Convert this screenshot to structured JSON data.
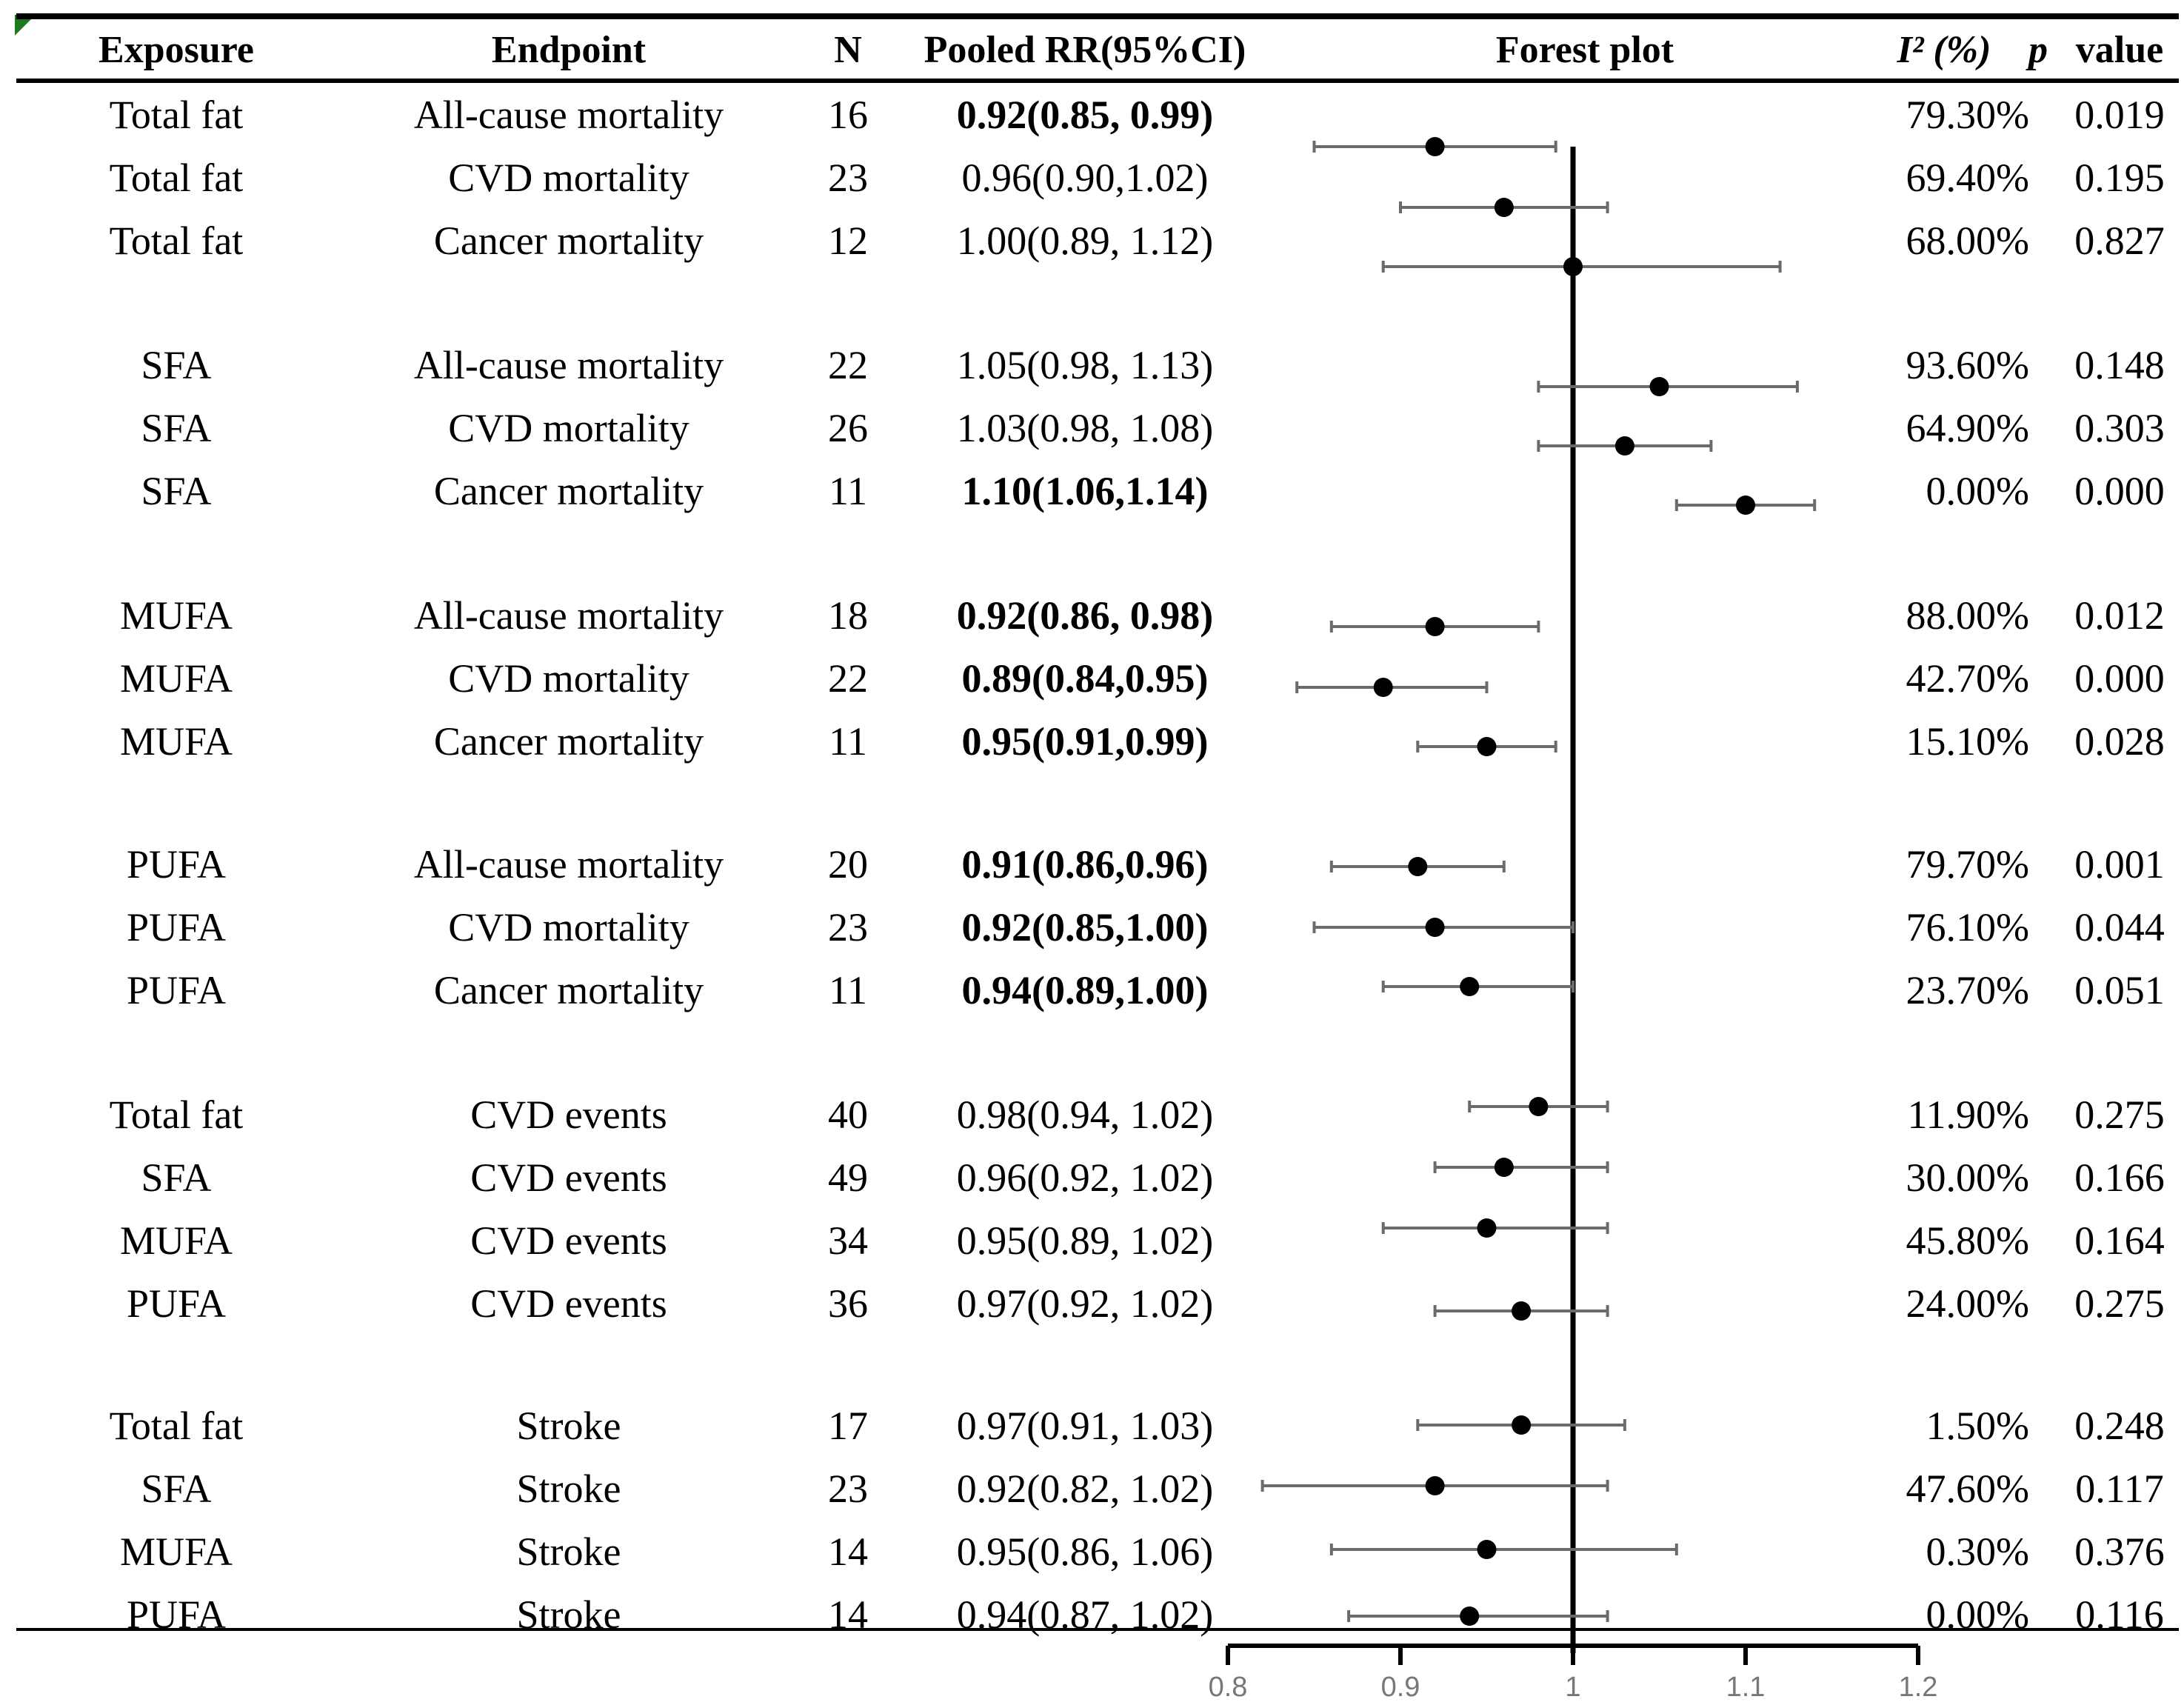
{
  "headers": {
    "exposure": "Exposure",
    "endpoint": "Endpoint",
    "n": "N",
    "pooled": "Pooled RR(95%CI)",
    "forest": "Forest plot",
    "i2": "I² (%)",
    "p": "p",
    "value": "value"
  },
  "rows": [
    {
      "exposure": "Total fat",
      "endpoint": "All-cause mortality",
      "n": "16",
      "rr_text": "0.92(0.85, 0.99)",
      "bold": true,
      "i2": "79.30%",
      "p": "0.019"
    },
    {
      "exposure": "Total fat",
      "endpoint": "CVD mortality",
      "n": "23",
      "rr_text": "0.96(0.90,1.02)",
      "bold": false,
      "i2": "69.40%",
      "p": "0.195"
    },
    {
      "exposure": "Total fat",
      "endpoint": "Cancer mortality",
      "n": "12",
      "rr_text": "1.00(0.89, 1.12)",
      "bold": false,
      "i2": "68.00%",
      "p": "0.827"
    },
    {
      "exposure": "SFA",
      "endpoint": "All-cause mortality",
      "n": "22",
      "rr_text": "1.05(0.98, 1.13)",
      "bold": false,
      "i2": "93.60%",
      "p": "0.148"
    },
    {
      "exposure": "SFA",
      "endpoint": "CVD mortality",
      "n": "26",
      "rr_text": "1.03(0.98, 1.08)",
      "bold": false,
      "i2": "64.90%",
      "p": "0.303"
    },
    {
      "exposure": "SFA",
      "endpoint": "Cancer mortality",
      "n": "11",
      "rr_text": "1.10(1.06,1.14)",
      "bold": true,
      "i2": "0.00%",
      "p": "0.000"
    },
    {
      "exposure": "MUFA",
      "endpoint": "All-cause mortality",
      "n": "18",
      "rr_text": "0.92(0.86, 0.98)",
      "bold": true,
      "i2": "88.00%",
      "p": "0.012"
    },
    {
      "exposure": "MUFA",
      "endpoint": "CVD mortality",
      "n": "22",
      "rr_text": "0.89(0.84,0.95)",
      "bold": true,
      "i2": "42.70%",
      "p": "0.000"
    },
    {
      "exposure": "MUFA",
      "endpoint": "Cancer mortality",
      "n": "11",
      "rr_text": "0.95(0.91,0.99)",
      "bold": true,
      "i2": "15.10%",
      "p": "0.028"
    },
    {
      "exposure": "PUFA",
      "endpoint": "All-cause mortality",
      "n": "20",
      "rr_text": "0.91(0.86,0.96)",
      "bold": true,
      "i2": "79.70%",
      "p": "0.001"
    },
    {
      "exposure": "PUFA",
      "endpoint": "CVD mortality",
      "n": "23",
      "rr_text": "0.92(0.85,1.00)",
      "bold": true,
      "i2": "76.10%",
      "p": "0.044"
    },
    {
      "exposure": "PUFA",
      "endpoint": "Cancer mortality",
      "n": "11",
      "rr_text": "0.94(0.89,1.00)",
      "bold": true,
      "i2": "23.70%",
      "p": "0.051"
    },
    {
      "exposure": "Total fat",
      "endpoint": "CVD events",
      "n": "40",
      "rr_text": "0.98(0.94, 1.02)",
      "bold": false,
      "i2": "11.90%",
      "p": "0.275"
    },
    {
      "exposure": "SFA",
      "endpoint": "CVD events",
      "n": "49",
      "rr_text": "0.96(0.92, 1.02)",
      "bold": false,
      "i2": "30.00%",
      "p": "0.166"
    },
    {
      "exposure": "MUFA",
      "endpoint": "CVD events",
      "n": "34",
      "rr_text": "0.95(0.89, 1.02)",
      "bold": false,
      "i2": "45.80%",
      "p": "0.164"
    },
    {
      "exposure": "PUFA",
      "endpoint": "CVD events",
      "n": "36",
      "rr_text": "0.97(0.92, 1.02)",
      "bold": false,
      "i2": "24.00%",
      "p": "0.275"
    },
    {
      "exposure": "Total fat",
      "endpoint": "Stroke",
      "n": "17",
      "rr_text": "0.97(0.91, 1.03)",
      "bold": false,
      "i2": "1.50%",
      "p": "0.248"
    },
    {
      "exposure": "SFA",
      "endpoint": "Stroke",
      "n": "23",
      "rr_text": "0.92(0.82, 1.02)",
      "bold": false,
      "i2": "47.60%",
      "p": "0.117"
    },
    {
      "exposure": "MUFA",
      "endpoint": "Stroke",
      "n": "14",
      "rr_text": "0.95(0.86, 1.06)",
      "bold": false,
      "i2": "0.30%",
      "p": "0.376"
    },
    {
      "exposure": "PUFA",
      "endpoint": "Stroke",
      "n": "14",
      "rr_text": "0.94(0.87, 1.02)",
      "bold": false,
      "i2": "0.00%",
      "p": "0.116"
    }
  ],
  "chart_data": {
    "type": "forest",
    "title": "Forest plot",
    "xlabel": "",
    "ylabel": "",
    "xlim": [
      0.8,
      1.2
    ],
    "reference_line": 1.0,
    "ticks": [
      0.8,
      0.9,
      1.0,
      1.1,
      1.2
    ],
    "tick_labels": [
      "0.8",
      "0.9",
      "1",
      "1.1",
      "1.2"
    ],
    "points": [
      {
        "label": "Total fat / All-cause mortality",
        "rr": 0.92,
        "lo": 0.85,
        "hi": 0.99
      },
      {
        "label": "Total fat / CVD mortality",
        "rr": 0.96,
        "lo": 0.9,
        "hi": 1.02
      },
      {
        "label": "Total fat / Cancer mortality",
        "rr": 1.0,
        "lo": 0.89,
        "hi": 1.12
      },
      {
        "label": "SFA / All-cause mortality",
        "rr": 1.05,
        "lo": 0.98,
        "hi": 1.13
      },
      {
        "label": "SFA / CVD mortality",
        "rr": 1.03,
        "lo": 0.98,
        "hi": 1.08
      },
      {
        "label": "SFA / Cancer mortality",
        "rr": 1.1,
        "lo": 1.06,
        "hi": 1.14
      },
      {
        "label": "MUFA / All-cause mortality",
        "rr": 0.92,
        "lo": 0.86,
        "hi": 0.98
      },
      {
        "label": "MUFA / CVD mortality",
        "rr": 0.89,
        "lo": 0.84,
        "hi": 0.95
      },
      {
        "label": "MUFA / Cancer mortality",
        "rr": 0.95,
        "lo": 0.91,
        "hi": 0.99
      },
      {
        "label": "PUFA / All-cause mortality",
        "rr": 0.91,
        "lo": 0.86,
        "hi": 0.96
      },
      {
        "label": "PUFA / CVD mortality",
        "rr": 0.92,
        "lo": 0.85,
        "hi": 1.0
      },
      {
        "label": "PUFA / Cancer mortality",
        "rr": 0.94,
        "lo": 0.89,
        "hi": 1.0
      },
      {
        "label": "Total fat / CVD events",
        "rr": 0.98,
        "lo": 0.94,
        "hi": 1.02
      },
      {
        "label": "SFA / CVD events",
        "rr": 0.96,
        "lo": 0.92,
        "hi": 1.02
      },
      {
        "label": "MUFA / CVD events",
        "rr": 0.95,
        "lo": 0.89,
        "hi": 1.02
      },
      {
        "label": "PUFA / CVD events",
        "rr": 0.97,
        "lo": 0.92,
        "hi": 1.02
      },
      {
        "label": "Total fat / Stroke",
        "rr": 0.97,
        "lo": 0.91,
        "hi": 1.03
      },
      {
        "label": "SFA / Stroke",
        "rr": 0.92,
        "lo": 0.82,
        "hi": 1.02
      },
      {
        "label": "MUFA / Stroke",
        "rr": 0.95,
        "lo": 0.86,
        "hi": 1.06
      },
      {
        "label": "PUFA / Stroke",
        "rr": 0.94,
        "lo": 0.87,
        "hi": 1.02
      }
    ]
  }
}
